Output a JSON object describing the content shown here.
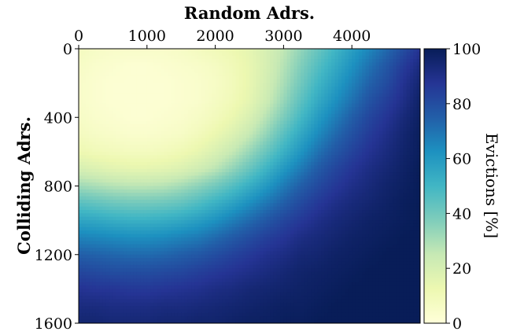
{
  "chart_data": {
    "type": "heatmap",
    "xlabel": "Random Adrs.",
    "ylabel": "Colliding Adrs.",
    "x_ticks": [
      "0",
      "1000",
      "2000",
      "3000",
      "4000"
    ],
    "x_tick_values": [
      0,
      1000,
      2000,
      3000,
      4000
    ],
    "y_ticks": [
      "0",
      "400",
      "800",
      "1200",
      "1600"
    ],
    "y_tick_values": [
      0,
      400,
      800,
      1200,
      1600
    ],
    "xlim": [
      0,
      5000
    ],
    "ylim": [
      0,
      1600
    ],
    "y_axis_inverted": true,
    "x_axis_position": "top",
    "colorbar": {
      "label": "Evictions [%]",
      "ticks": [
        "0",
        "20",
        "40",
        "60",
        "80",
        "100"
      ],
      "tick_values": [
        0,
        20,
        40,
        60,
        80,
        100
      ],
      "range": [
        0,
        100
      ],
      "colormap": "YlGnBu",
      "color_stops": [
        "#ffffd9",
        "#edf8b1",
        "#c7e9b4",
        "#7fcdbb",
        "#41b6c4",
        "#1d91c0",
        "#225ea8",
        "#253494",
        "#081d58"
      ]
    },
    "x_bins": [
      0,
      250,
      500,
      750,
      1000,
      1250,
      1500,
      1750,
      2000,
      2250,
      2500,
      2750,
      3000,
      3250,
      3500,
      3750,
      4000,
      4250,
      4500,
      4750,
      5000
    ],
    "y_bins": [
      0,
      100,
      200,
      300,
      400,
      500,
      600,
      700,
      800,
      900,
      1000,
      1100,
      1200,
      1300,
      1400,
      1500,
      1600
    ],
    "values": [
      [
        8,
        6,
        5,
        5,
        5,
        5,
        6,
        8,
        10,
        12,
        15,
        20,
        26,
        34,
        42,
        50,
        58,
        65,
        72,
        80,
        88
      ],
      [
        6,
        4,
        3,
        2,
        2,
        3,
        4,
        5,
        7,
        10,
        14,
        20,
        28,
        37,
        46,
        54,
        62,
        70,
        77,
        85,
        92
      ],
      [
        5,
        3,
        2,
        2,
        2,
        2,
        3,
        4,
        6,
        9,
        14,
        21,
        30,
        40,
        50,
        58,
        66,
        74,
        80,
        88,
        95
      ],
      [
        5,
        3,
        2,
        2,
        2,
        2,
        3,
        4,
        7,
        10,
        15,
        23,
        33,
        44,
        54,
        62,
        70,
        78,
        84,
        90,
        97
      ],
      [
        6,
        4,
        3,
        2,
        2,
        3,
        4,
        6,
        9,
        13,
        19,
        28,
        38,
        49,
        59,
        67,
        75,
        82,
        87,
        93,
        98
      ],
      [
        8,
        6,
        5,
        4,
        4,
        5,
        6,
        9,
        13,
        18,
        25,
        34,
        45,
        55,
        64,
        72,
        79,
        85,
        90,
        95,
        99
      ],
      [
        12,
        10,
        9,
        8,
        8,
        9,
        11,
        14,
        19,
        25,
        33,
        42,
        52,
        61,
        70,
        77,
        83,
        88,
        92,
        96,
        99
      ],
      [
        20,
        18,
        16,
        15,
        15,
        16,
        18,
        22,
        27,
        34,
        42,
        51,
        60,
        68,
        76,
        82,
        87,
        91,
        94,
        97,
        100
      ],
      [
        32,
        30,
        28,
        27,
        27,
        28,
        31,
        35,
        40,
        46,
        53,
        60,
        68,
        75,
        81,
        86,
        90,
        93,
        96,
        98,
        100
      ],
      [
        45,
        43,
        41,
        40,
        40,
        41,
        43,
        47,
        52,
        57,
        63,
        69,
        75,
        81,
        86,
        90,
        93,
        95,
        97,
        99,
        100
      ],
      [
        56,
        55,
        53,
        52,
        52,
        53,
        55,
        58,
        62,
        67,
        72,
        77,
        82,
        86,
        90,
        93,
        95,
        97,
        98,
        99,
        100
      ],
      [
        66,
        65,
        64,
        63,
        63,
        64,
        66,
        68,
        72,
        76,
        80,
        84,
        87,
        91,
        93,
        95,
        97,
        98,
        99,
        100,
        100
      ],
      [
        75,
        74,
        73,
        72,
        72,
        73,
        75,
        77,
        80,
        83,
        86,
        89,
        91,
        94,
        95,
        97,
        98,
        99,
        100,
        100,
        100
      ],
      [
        82,
        81,
        80,
        80,
        80,
        81,
        82,
        84,
        86,
        88,
        90,
        92,
        94,
        96,
        97,
        98,
        99,
        100,
        100,
        100,
        100
      ],
      [
        88,
        87,
        87,
        86,
        86,
        87,
        88,
        89,
        91,
        92,
        94,
        95,
        96,
        97,
        98,
        99,
        100,
        100,
        100,
        100,
        100
      ],
      [
        92,
        92,
        91,
        91,
        91,
        92,
        92,
        93,
        94,
        95,
        96,
        97,
        98,
        98,
        99,
        100,
        100,
        100,
        100,
        100,
        100
      ],
      [
        95,
        95,
        94,
        94,
        94,
        95,
        95,
        96,
        96,
        97,
        98,
        98,
        99,
        99,
        100,
        100,
        100,
        100,
        100,
        100,
        100
      ]
    ]
  }
}
